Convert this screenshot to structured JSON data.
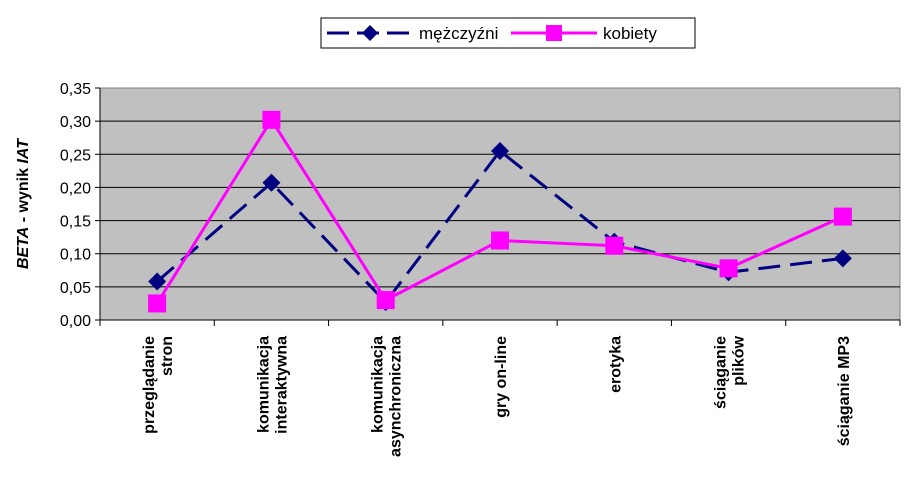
{
  "chart_data": {
    "type": "line",
    "categories": [
      [
        "przeglądanie",
        "stron"
      ],
      [
        "komunikacja",
        "interaktywna"
      ],
      [
        "komunikacja",
        "asynchroniczna"
      ],
      [
        "gry on-line"
      ],
      [
        "erotyka"
      ],
      [
        "ściąganie",
        "plików"
      ],
      [
        "ściąganie MP3"
      ]
    ],
    "series": [
      {
        "name": "mężczyźni",
        "color": "#000080",
        "marker": "diamond",
        "dash": "dashed",
        "values": [
          0.058,
          0.207,
          0.027,
          0.255,
          0.118,
          0.072,
          0.093
        ]
      },
      {
        "name": "kobiety",
        "color": "#FF00FF",
        "marker": "square",
        "dash": "solid",
        "values": [
          0.025,
          0.302,
          0.03,
          0.12,
          0.112,
          0.078,
          0.156
        ]
      }
    ],
    "ylabel_italic_part": "BETA",
    "ylabel_rest": " - wynik ",
    "ylabel_italic_end": "IAT",
    "yticks": [
      "0,00",
      "0,05",
      "0,10",
      "0,15",
      "0,20",
      "0,25",
      "0,30",
      "0,35"
    ],
    "ylim": [
      0,
      0.35
    ],
    "plot_background": "#C0C0C0",
    "grid": true,
    "legend_position": "top"
  }
}
